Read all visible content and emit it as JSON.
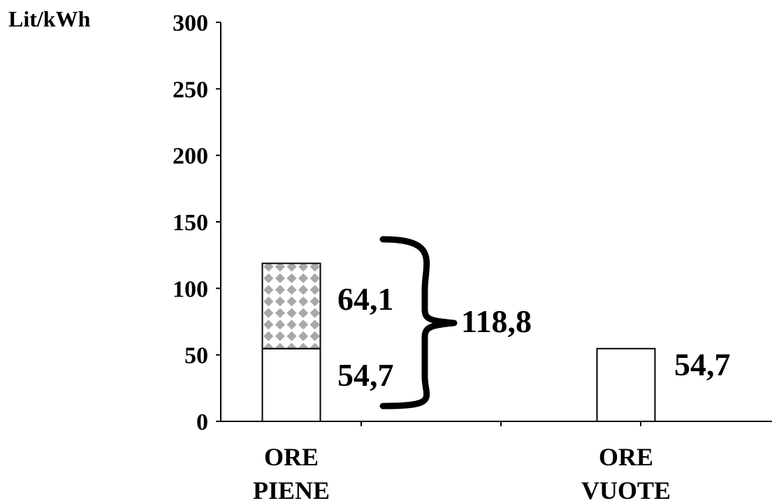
{
  "chart_data": {
    "type": "bar",
    "stacked": true,
    "ylabel": "Lit/kWh",
    "ylim": [
      0,
      300
    ],
    "yticks": [
      "0",
      "50",
      "100",
      "150",
      "200",
      "250",
      "300"
    ],
    "categories": [
      {
        "line1": "ORE",
        "line2": "PIENE"
      },
      {
        "line1": "ORE",
        "line2": "VUOTE"
      }
    ],
    "series": [
      {
        "pattern": "white",
        "values": [
          54.7,
          54.7
        ]
      },
      {
        "pattern": "diamond-checker",
        "values": [
          64.1,
          0
        ]
      }
    ],
    "data_labels": {
      "piene_top": "64,1",
      "piene_bottom": "54,7",
      "piene_total": "118,8",
      "vuote": "54,7"
    },
    "grid": false,
    "legend": "none",
    "colors": {
      "bar_fill": "#ffffff",
      "bar_stroke": "#000000",
      "pattern_bg": "#ffffff",
      "pattern_diamond": "#a8a8a8"
    }
  }
}
